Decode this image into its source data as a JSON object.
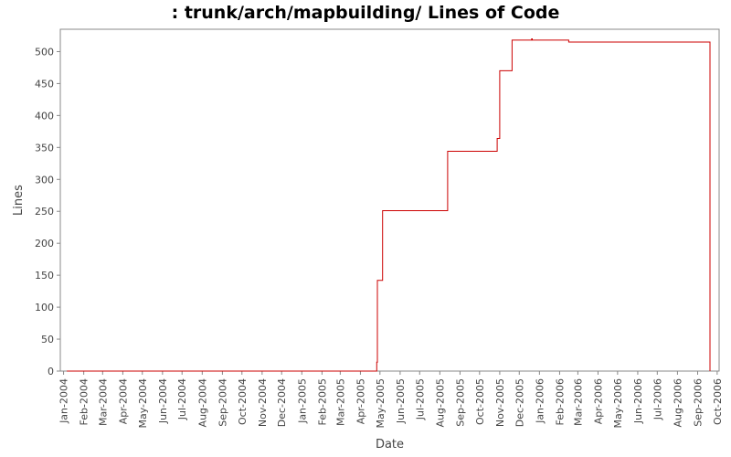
{
  "chart_data": {
    "type": "line",
    "title": ": trunk/arch/mapbuilding/ Lines of Code",
    "xlabel": "Date",
    "ylabel": "Lines",
    "ylim": [
      0,
      535
    ],
    "xlim": [
      "2003-12-27",
      "2006-10-04"
    ],
    "y_ticks": [
      0,
      50,
      100,
      150,
      200,
      250,
      300,
      350,
      400,
      450,
      500
    ],
    "x_ticks": [
      {
        "label": "Jan-2004",
        "date": "2004-01-01"
      },
      {
        "label": "Feb-2004",
        "date": "2004-02-01"
      },
      {
        "label": "Mar-2004",
        "date": "2004-03-01"
      },
      {
        "label": "Apr-2004",
        "date": "2004-04-01"
      },
      {
        "label": "May-2004",
        "date": "2004-05-01"
      },
      {
        "label": "Jun-2004",
        "date": "2004-06-01"
      },
      {
        "label": "Jul-2004",
        "date": "2004-07-01"
      },
      {
        "label": "Aug-2004",
        "date": "2004-08-01"
      },
      {
        "label": "Sep-2004",
        "date": "2004-09-01"
      },
      {
        "label": "Oct-2004",
        "date": "2004-10-01"
      },
      {
        "label": "Nov-2004",
        "date": "2004-11-01"
      },
      {
        "label": "Dec-2004",
        "date": "2004-12-01"
      },
      {
        "label": "Jan-2005",
        "date": "2005-01-01"
      },
      {
        "label": "Feb-2005",
        "date": "2005-02-01"
      },
      {
        "label": "Mar-2005",
        "date": "2005-03-01"
      },
      {
        "label": "Apr-2005",
        "date": "2005-04-01"
      },
      {
        "label": "May-2005",
        "date": "2005-05-01"
      },
      {
        "label": "Jun-2005",
        "date": "2005-06-01"
      },
      {
        "label": "Jul-2005",
        "date": "2005-07-01"
      },
      {
        "label": "Aug-2005",
        "date": "2005-08-01"
      },
      {
        "label": "Sep-2005",
        "date": "2005-09-01"
      },
      {
        "label": "Oct-2005",
        "date": "2005-10-01"
      },
      {
        "label": "Nov-2005",
        "date": "2005-11-01"
      },
      {
        "label": "Dec-2005",
        "date": "2005-12-01"
      },
      {
        "label": "Jan-2006",
        "date": "2006-01-01"
      },
      {
        "label": "Feb-2006",
        "date": "2006-02-01"
      },
      {
        "label": "Mar-2006",
        "date": "2006-03-01"
      },
      {
        "label": "Apr-2006",
        "date": "2006-04-01"
      },
      {
        "label": "May-2006",
        "date": "2006-05-01"
      },
      {
        "label": "Jun-2006",
        "date": "2006-06-01"
      },
      {
        "label": "Jul-2006",
        "date": "2006-07-01"
      },
      {
        "label": "Aug-2006",
        "date": "2006-08-01"
      },
      {
        "label": "Sep-2006",
        "date": "2006-09-01"
      },
      {
        "label": "Oct-2006",
        "date": "2006-10-01"
      }
    ],
    "grid": false,
    "step": true,
    "series": [
      {
        "color": "#cc0000",
        "points": [
          {
            "x": "2004-01-06",
            "y": 0
          },
          {
            "x": "2005-04-25",
            "y": 0
          },
          {
            "x": "2005-04-26",
            "y": 14
          },
          {
            "x": "2005-04-27",
            "y": 142
          },
          {
            "x": "2005-05-05",
            "y": 251
          },
          {
            "x": "2005-08-13",
            "y": 344
          },
          {
            "x": "2005-10-28",
            "y": 364
          },
          {
            "x": "2005-11-01",
            "y": 470
          },
          {
            "x": "2005-11-20",
            "y": 518
          },
          {
            "x": "2005-12-20",
            "y": 520
          },
          {
            "x": "2005-12-21",
            "y": 518
          },
          {
            "x": "2006-02-15",
            "y": 515
          },
          {
            "x": "2006-09-20",
            "y": 0
          }
        ]
      }
    ]
  }
}
